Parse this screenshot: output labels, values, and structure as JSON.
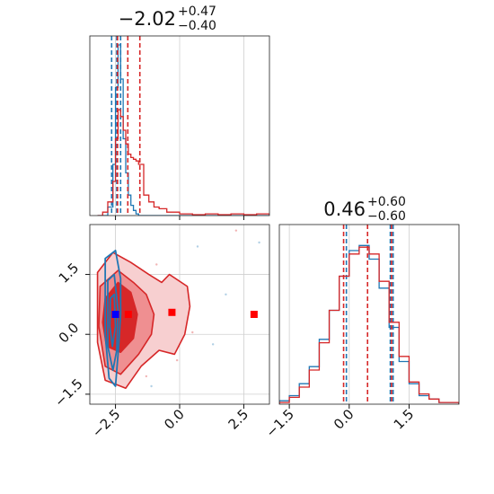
{
  "chart_data": {
    "type": "corner",
    "panels": [
      {
        "id": "param1-marginal",
        "type": "histogram",
        "title": {
          "value": "−2.02",
          "sup": "+0.47",
          "sub": "−0.40"
        },
        "xlim": [
          -3.5,
          3.5
        ],
        "grid": true,
        "bin_edges": [
          -3.2,
          -3.0,
          -2.8,
          -2.6,
          -2.5,
          -2.4,
          -2.3,
          -2.2,
          -2.1,
          -2.0,
          -1.9,
          -1.8,
          -1.7,
          -1.6,
          -1.4,
          -1.2,
          -1.0,
          -0.8,
          -0.5,
          0.0,
          0.5,
          1.0,
          1.5,
          2.0,
          2.5,
          3.0,
          3.5
        ],
        "series": [
          {
            "color": "#1f77b4",
            "counts": [
              0,
              0,
              0.05,
              0.3,
              0.75,
              1.0,
              0.8,
              0.45,
              0.25,
              0.12,
              0.06,
              0.03,
              0.01,
              0,
              0,
              0,
              0,
              0,
              0,
              0,
              0,
              0,
              0,
              0,
              0,
              0
            ],
            "quantile_lines": [
              -2.65,
              -2.45,
              -2.3
            ]
          },
          {
            "color": "#d62728",
            "counts": [
              0,
              0.02,
              0.08,
              0.2,
              0.45,
              0.62,
              0.58,
              0.5,
              0.42,
              0.36,
              0.34,
              0.33,
              0.32,
              0.3,
              0.12,
              0.08,
              0.05,
              0.04,
              0.02,
              0.01,
              0.005,
              0.01,
              0.005,
              0.01,
              0.005,
              0.01
            ],
            "quantile_lines": [
              -2.42,
              -2.02,
              -1.55
            ]
          }
        ]
      },
      {
        "id": "param2-marginal",
        "type": "histogram",
        "title": {
          "value": "0.46",
          "sup": "+0.60",
          "sub": "−0.60"
        },
        "xlim": [
          -1.75,
          2.75
        ],
        "xticks": [
          "−1.5",
          "0.0",
          "1.5"
        ],
        "grid": true,
        "bin_edges": [
          -1.75,
          -1.5,
          -1.25,
          -1.0,
          -0.75,
          -0.5,
          -0.25,
          0.0,
          0.25,
          0.5,
          0.75,
          1.0,
          1.25,
          1.5,
          1.75,
          2.0,
          2.25,
          2.5,
          2.75
        ],
        "series": [
          {
            "color": "#1f77b4",
            "counts": [
              0.02,
              0.05,
              0.12,
              0.22,
              0.38,
              0.55,
              0.75,
              0.9,
              0.93,
              0.85,
              0.68,
              0.45,
              0.25,
              0.12,
              0.05,
              0.03,
              0.01,
              0.01
            ],
            "quantile_lines": [
              -0.07,
              1.03,
              1.1
            ]
          },
          {
            "color": "#d62728",
            "counts": [
              0.01,
              0.04,
              0.1,
              0.2,
              0.36,
              0.55,
              0.75,
              0.88,
              0.92,
              0.88,
              0.72,
              0.48,
              0.28,
              0.13,
              0.06,
              0.03,
              0.01,
              0.01
            ],
            "quantile_lines": [
              -0.14,
              0.46,
              1.06
            ]
          }
        ]
      },
      {
        "id": "joint-2d",
        "type": "contour",
        "xlim": [
          -3.5,
          3.5
        ],
        "ylim": [
          -1.75,
          2.75
        ],
        "xticks": [
          "−2.5",
          "0.0",
          "2.5"
        ],
        "yticks": [
          "−1.5",
          "0.0",
          "1.5"
        ],
        "grid": true,
        "red_levels": [
          {
            "fill": "#f7cfd0",
            "points": [
              [
                -3.2,
                1.55
              ],
              [
                -2.6,
                2.05
              ],
              [
                -1.9,
                1.8
              ],
              [
                -1.2,
                1.5
              ],
              [
                -0.7,
                1.3
              ],
              [
                -0.4,
                1.5
              ],
              [
                0.3,
                1.2
              ],
              [
                0.4,
                0.7
              ],
              [
                0.2,
                0.0
              ],
              [
                -0.2,
                -0.5
              ],
              [
                -0.8,
                -0.4
              ],
              [
                -1.5,
                -0.8
              ],
              [
                -2.1,
                -1.35
              ],
              [
                -2.9,
                -1.15
              ],
              [
                -3.2,
                -0.2
              ]
            ]
          },
          {
            "fill": "#ef8f91",
            "points": [
              [
                -3.1,
                1.2
              ],
              [
                -2.4,
                1.6
              ],
              [
                -1.8,
                1.3
              ],
              [
                -1.3,
                1.0
              ],
              [
                -1.0,
                0.5
              ],
              [
                -1.1,
                0.0
              ],
              [
                -1.6,
                -0.5
              ],
              [
                -2.3,
                -1.0
              ],
              [
                -2.9,
                -0.8
              ],
              [
                -3.15,
                0.2
              ]
            ]
          },
          {
            "fill": "#d62728",
            "points": [
              [
                -2.9,
                0.9
              ],
              [
                -2.4,
                1.3
              ],
              [
                -1.9,
                1.05
              ],
              [
                -1.65,
                0.5
              ],
              [
                -1.8,
                -0.1
              ],
              [
                -2.3,
                -0.45
              ],
              [
                -2.85,
                -0.3
              ],
              [
                -3.0,
                0.3
              ]
            ]
          }
        ],
        "blue_levels": [
          {
            "points": [
              [
                -2.9,
                1.9
              ],
              [
                -2.5,
                2.1
              ],
              [
                -2.3,
                1.4
              ],
              [
                -2.3,
                0.5
              ],
              [
                -2.4,
                -0.5
              ],
              [
                -2.5,
                -1.3
              ],
              [
                -2.75,
                -1.1
              ],
              [
                -2.9,
                0.0
              ]
            ]
          },
          {
            "points": [
              [
                -2.8,
                1.35
              ],
              [
                -2.55,
                1.5
              ],
              [
                -2.4,
                0.6
              ],
              [
                -2.45,
                -0.4
              ],
              [
                -2.6,
                -0.9
              ],
              [
                -2.8,
                -0.3
              ]
            ]
          },
          {
            "points": [
              [
                -2.7,
                0.9
              ],
              [
                -2.55,
                1.0
              ],
              [
                -2.5,
                0.2
              ],
              [
                -2.62,
                -0.3
              ],
              [
                -2.72,
                0.2
              ]
            ]
          }
        ],
        "markers": [
          {
            "x": -2.5,
            "y": 0.5,
            "color": "#0000ff"
          },
          {
            "x": -2.0,
            "y": 0.5,
            "color": "#ff0000"
          },
          {
            "x": -0.3,
            "y": 0.55,
            "color": "#ff0000"
          },
          {
            "x": 2.9,
            "y": 0.5,
            "color": "#ff0000"
          }
        ],
        "outliers": [
          {
            "x": -0.1,
            "y": -0.65,
            "color": "#d62728"
          },
          {
            "x": -0.9,
            "y": 1.75,
            "color": "#d62728"
          },
          {
            "x": 2.2,
            "y": 2.6,
            "color": "#d62728"
          },
          {
            "x": 0.7,
            "y": 2.2,
            "color": "#1f77b4"
          },
          {
            "x": 1.3,
            "y": -0.25,
            "color": "#1f77b4"
          },
          {
            "x": -1.1,
            "y": -1.3,
            "color": "#1f77b4"
          },
          {
            "x": 3.1,
            "y": 2.3,
            "color": "#1f77b4"
          },
          {
            "x": 0.5,
            "y": 0.05,
            "color": "#d62728"
          },
          {
            "x": 1.8,
            "y": 1.0,
            "color": "#1f77b4"
          },
          {
            "x": -1.3,
            "y": -1.05,
            "color": "#d62728"
          }
        ]
      }
    ]
  }
}
